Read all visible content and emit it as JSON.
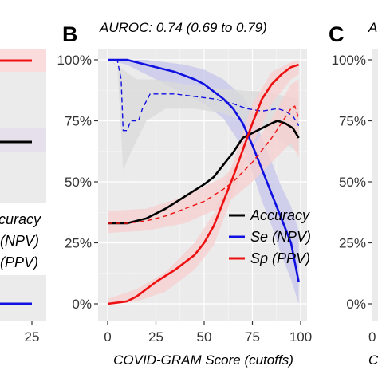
{
  "panels": {
    "left_partial": {
      "legend": [
        "curacy",
        "(NPV)",
        "(PPV)"
      ],
      "x_tick": "25"
    },
    "center": {
      "letter": "B",
      "subtitle": "AUROC: 0.74 (0.69 to 0.79)"
    },
    "right_partial": {
      "letter": "C",
      "subtitle_fragment": "A",
      "y_ticks": [
        "100%",
        "75%",
        "50%",
        "25%",
        "0%"
      ],
      "x_fragment": "C"
    }
  },
  "colors": {
    "accuracy": "#000000",
    "se_npv": "#1010e0",
    "sp_ppv": "#ee1010",
    "se_band": "#c6c6ec",
    "sp_band": "#f7cfcf",
    "grey_band": "#d9d9d9"
  },
  "chart_data": {
    "type": "line",
    "title": "AUROC: 0.74 (0.69 to 0.79)",
    "xlabel": "COVID-GRAM Score (cutoffs)",
    "ylabel": "",
    "xlim": [
      0,
      100
    ],
    "ylim": [
      0,
      100
    ],
    "x_ticks": [
      "0",
      "25",
      "50",
      "75",
      "100"
    ],
    "y_ticks": [
      "0%",
      "25%",
      "50%",
      "75%",
      "100%"
    ],
    "legend_position": "bottom-right",
    "legend": [
      "Accuracy",
      "Se (NPV)",
      "Sp (PPV)"
    ],
    "series": [
      {
        "name": "Accuracy",
        "style": "solid",
        "color": "#000000",
        "points": [
          [
            0,
            33
          ],
          [
            10,
            33
          ],
          [
            20,
            35
          ],
          [
            30,
            39
          ],
          [
            40,
            44
          ],
          [
            50,
            49
          ],
          [
            55,
            52
          ],
          [
            60,
            57
          ],
          [
            65,
            62
          ],
          [
            70,
            68
          ],
          [
            75,
            70
          ],
          [
            80,
            72
          ],
          [
            85,
            74
          ],
          [
            88,
            75
          ],
          [
            92,
            74
          ],
          [
            96,
            72
          ],
          [
            99,
            68
          ]
        ]
      },
      {
        "name": "Se",
        "style": "solid",
        "color": "#1010e0",
        "points": [
          [
            0,
            100
          ],
          [
            10,
            100
          ],
          [
            15,
            99
          ],
          [
            25,
            97
          ],
          [
            35,
            95
          ],
          [
            45,
            92
          ],
          [
            50,
            90
          ],
          [
            55,
            87
          ],
          [
            60,
            84
          ],
          [
            65,
            80
          ],
          [
            70,
            74
          ],
          [
            75,
            65
          ],
          [
            80,
            55
          ],
          [
            85,
            45
          ],
          [
            90,
            35
          ],
          [
            95,
            25
          ],
          [
            99,
            9
          ]
        ]
      },
      {
        "name": "NPV",
        "style": "dashed",
        "color": "#1010e0",
        "points": [
          [
            0,
            100
          ],
          [
            5,
            100
          ],
          [
            7,
            92
          ],
          [
            8,
            71
          ],
          [
            10,
            71
          ],
          [
            12,
            75
          ],
          [
            16,
            75
          ],
          [
            18,
            80
          ],
          [
            22,
            86
          ],
          [
            27,
            86
          ],
          [
            35,
            86
          ],
          [
            45,
            85
          ],
          [
            55,
            84
          ],
          [
            65,
            82
          ],
          [
            72,
            80
          ],
          [
            80,
            79
          ],
          [
            88,
            80
          ],
          [
            92,
            79
          ],
          [
            96,
            77
          ],
          [
            99,
            73
          ]
        ]
      },
      {
        "name": "Sp",
        "style": "solid",
        "color": "#ee1010",
        "points": [
          [
            0,
            0
          ],
          [
            10,
            1
          ],
          [
            15,
            3
          ],
          [
            25,
            9
          ],
          [
            35,
            14
          ],
          [
            45,
            20
          ],
          [
            50,
            25
          ],
          [
            55,
            32
          ],
          [
            60,
            42
          ],
          [
            65,
            52
          ],
          [
            70,
            63
          ],
          [
            75,
            74
          ],
          [
            80,
            84
          ],
          [
            85,
            90
          ],
          [
            90,
            94
          ],
          [
            95,
            97
          ],
          [
            99,
            98
          ]
        ]
      },
      {
        "name": "PPV",
        "style": "dashed",
        "color": "#ee1010",
        "points": [
          [
            0,
            33
          ],
          [
            10,
            33
          ],
          [
            20,
            34
          ],
          [
            30,
            36
          ],
          [
            40,
            39
          ],
          [
            50,
            42
          ],
          [
            60,
            47
          ],
          [
            65,
            50
          ],
          [
            70,
            54
          ],
          [
            75,
            58
          ],
          [
            80,
            63
          ],
          [
            85,
            68
          ],
          [
            90,
            74
          ],
          [
            95,
            80
          ],
          [
            97,
            81
          ],
          [
            99,
            76
          ]
        ]
      }
    ],
    "bands": [
      {
        "series": "Se",
        "color": "#c6c6ec",
        "upper": [
          [
            0,
            100
          ],
          [
            10,
            100
          ],
          [
            20,
            100
          ],
          [
            30,
            99
          ],
          [
            40,
            98
          ],
          [
            50,
            96
          ],
          [
            60,
            92
          ],
          [
            70,
            85
          ],
          [
            75,
            78
          ],
          [
            80,
            68
          ],
          [
            85,
            58
          ],
          [
            90,
            48
          ],
          [
            95,
            40
          ],
          [
            99,
            30
          ]
        ],
        "lower": [
          [
            0,
            100
          ],
          [
            10,
            98
          ],
          [
            20,
            94
          ],
          [
            30,
            90
          ],
          [
            40,
            86
          ],
          [
            50,
            82
          ],
          [
            60,
            76
          ],
          [
            70,
            64
          ],
          [
            75,
            54
          ],
          [
            80,
            42
          ],
          [
            85,
            32
          ],
          [
            90,
            20
          ],
          [
            95,
            10
          ],
          [
            99,
            0
          ]
        ]
      },
      {
        "series": "NPV",
        "color": "#d9d9d9",
        "upper": [
          [
            0,
            100
          ],
          [
            8,
            96
          ],
          [
            15,
            92
          ],
          [
            25,
            92
          ],
          [
            40,
            90
          ],
          [
            60,
            88
          ],
          [
            80,
            87
          ],
          [
            99,
            84
          ]
        ],
        "lower": [
          [
            0,
            100
          ],
          [
            5,
            98
          ],
          [
            8,
            55
          ],
          [
            12,
            62
          ],
          [
            20,
            75
          ],
          [
            30,
            80
          ],
          [
            45,
            80
          ],
          [
            60,
            78
          ],
          [
            80,
            72
          ],
          [
            99,
            62
          ]
        ]
      },
      {
        "series": "Sp",
        "color": "#f7cfcf",
        "upper": [
          [
            0,
            2
          ],
          [
            15,
            6
          ],
          [
            30,
            13
          ],
          [
            45,
            25
          ],
          [
            55,
            37
          ],
          [
            65,
            58
          ],
          [
            75,
            82
          ],
          [
            85,
            95
          ],
          [
            95,
            99
          ],
          [
            99,
            100
          ]
        ],
        "lower": [
          [
            0,
            0
          ],
          [
            15,
            1
          ],
          [
            30,
            5
          ],
          [
            45,
            14
          ],
          [
            55,
            24
          ],
          [
            65,
            45
          ],
          [
            75,
            65
          ],
          [
            85,
            82
          ],
          [
            95,
            92
          ],
          [
            99,
            94
          ]
        ]
      },
      {
        "series": "PPV",
        "color": "#f7cfcf",
        "upper": [
          [
            0,
            38
          ],
          [
            20,
            39
          ],
          [
            40,
            44
          ],
          [
            60,
            52
          ],
          [
            75,
            64
          ],
          [
            85,
            76
          ],
          [
            95,
            90
          ],
          [
            99,
            92
          ]
        ],
        "lower": [
          [
            0,
            29
          ],
          [
            20,
            30
          ],
          [
            40,
            33
          ],
          [
            60,
            40
          ],
          [
            75,
            50
          ],
          [
            85,
            58
          ],
          [
            95,
            66
          ],
          [
            99,
            60
          ]
        ]
      }
    ]
  }
}
